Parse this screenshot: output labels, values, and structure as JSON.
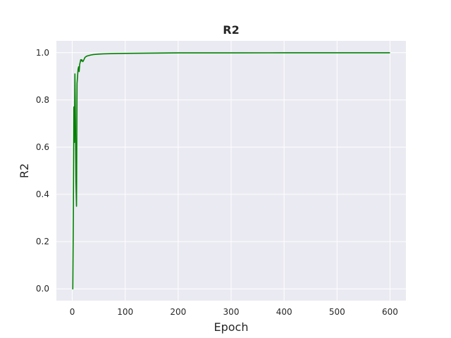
{
  "chart_data": {
    "type": "line",
    "title": "R2",
    "xlabel": "Epoch",
    "ylabel": "R2",
    "xlim": [
      -30,
      630
    ],
    "ylim": [
      -0.05,
      1.05
    ],
    "xticks": [
      0,
      100,
      200,
      300,
      400,
      500,
      600
    ],
    "yticks": [
      0.0,
      0.2,
      0.4,
      0.6,
      0.8,
      1.0
    ],
    "xtick_labels": [
      "0",
      "100",
      "200",
      "300",
      "400",
      "500",
      "600"
    ],
    "ytick_labels": [
      "0.0",
      "0.2",
      "0.4",
      "0.6",
      "0.8",
      "1.0"
    ],
    "grid": true,
    "background": "#eaeaf2",
    "series": [
      {
        "color": "#008000",
        "points": [
          [
            0,
            0.0
          ],
          [
            1,
            0.0
          ],
          [
            2,
            0.3
          ],
          [
            3,
            0.77
          ],
          [
            4,
            0.62
          ],
          [
            5,
            0.91
          ],
          [
            6,
            0.72
          ],
          [
            7,
            0.45
          ],
          [
            8,
            0.35
          ],
          [
            9,
            0.87
          ],
          [
            10,
            0.9
          ],
          [
            11,
            0.93
          ],
          [
            12,
            0.94
          ],
          [
            13,
            0.92
          ],
          [
            14,
            0.95
          ],
          [
            15,
            0.96
          ],
          [
            16,
            0.97
          ],
          [
            17,
            0.965
          ],
          [
            18,
            0.97
          ],
          [
            19,
            0.965
          ],
          [
            20,
            0.962
          ],
          [
            22,
            0.97
          ],
          [
            24,
            0.98
          ],
          [
            27,
            0.985
          ],
          [
            30,
            0.987
          ],
          [
            35,
            0.99
          ],
          [
            40,
            0.992
          ],
          [
            50,
            0.994
          ],
          [
            60,
            0.995
          ],
          [
            80,
            0.996
          ],
          [
            100,
            0.997
          ],
          [
            150,
            0.998
          ],
          [
            200,
            0.999
          ],
          [
            300,
            0.999
          ],
          [
            400,
            0.9995
          ],
          [
            500,
            0.9995
          ],
          [
            600,
            0.9995
          ]
        ]
      }
    ]
  }
}
